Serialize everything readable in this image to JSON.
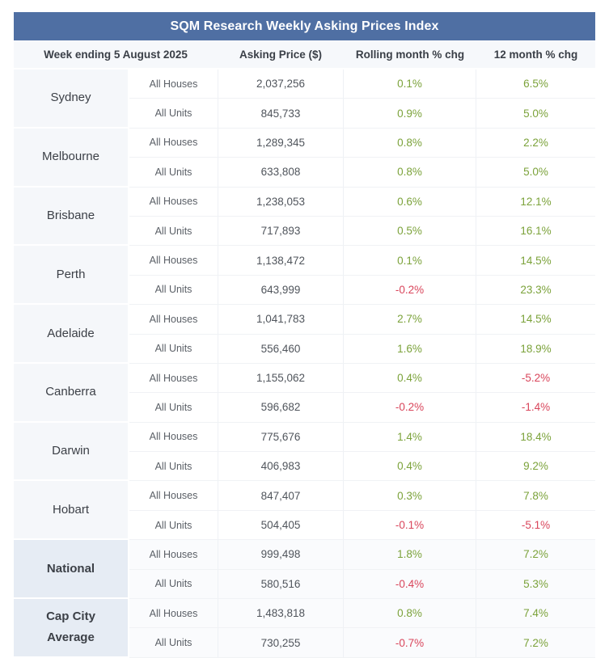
{
  "title": "SQM Research Weekly Asking Prices Index",
  "headers": {
    "week": "Week ending 5 August 2025",
    "price": "Asking Price ($)",
    "rolling": "Rolling month % chg",
    "annual": "12 month % chg"
  },
  "cities": [
    {
      "name": "Sydney",
      "aggregate": false,
      "rows": [
        {
          "type": "All Houses",
          "price": "2,037,256",
          "rolling": "0.1%",
          "annual": "6.5%"
        },
        {
          "type": "All Units",
          "price": "845,733",
          "rolling": "0.9%",
          "annual": "5.0%"
        }
      ]
    },
    {
      "name": "Melbourne",
      "aggregate": false,
      "rows": [
        {
          "type": "All Houses",
          "price": "1,289,345",
          "rolling": "0.8%",
          "annual": "2.2%"
        },
        {
          "type": "All Units",
          "price": "633,808",
          "rolling": "0.8%",
          "annual": "5.0%"
        }
      ]
    },
    {
      "name": "Brisbane",
      "aggregate": false,
      "rows": [
        {
          "type": "All Houses",
          "price": "1,238,053",
          "rolling": "0.6%",
          "annual": "12.1%"
        },
        {
          "type": "All Units",
          "price": "717,893",
          "rolling": "0.5%",
          "annual": "16.1%"
        }
      ]
    },
    {
      "name": "Perth",
      "aggregate": false,
      "rows": [
        {
          "type": "All Houses",
          "price": "1,138,472",
          "rolling": "0.1%",
          "annual": "14.5%"
        },
        {
          "type": "All Units",
          "price": "643,999",
          "rolling": "-0.2%",
          "annual": "23.3%"
        }
      ]
    },
    {
      "name": "Adelaide",
      "aggregate": false,
      "rows": [
        {
          "type": "All Houses",
          "price": "1,041,783",
          "rolling": "2.7%",
          "annual": "14.5%"
        },
        {
          "type": "All Units",
          "price": "556,460",
          "rolling": "1.6%",
          "annual": "18.9%"
        }
      ]
    },
    {
      "name": "Canberra",
      "aggregate": false,
      "rows": [
        {
          "type": "All Houses",
          "price": "1,155,062",
          "rolling": "0.4%",
          "annual": "-5.2%"
        },
        {
          "type": "All Units",
          "price": "596,682",
          "rolling": "-0.2%",
          "annual": "-1.4%"
        }
      ]
    },
    {
      "name": "Darwin",
      "aggregate": false,
      "rows": [
        {
          "type": "All Houses",
          "price": "775,676",
          "rolling": "1.4%",
          "annual": "18.4%"
        },
        {
          "type": "All Units",
          "price": "406,983",
          "rolling": "0.4%",
          "annual": "9.2%"
        }
      ]
    },
    {
      "name": "Hobart",
      "aggregate": false,
      "rows": [
        {
          "type": "All Houses",
          "price": "847,407",
          "rolling": "0.3%",
          "annual": "7.8%"
        },
        {
          "type": "All Units",
          "price": "504,405",
          "rolling": "-0.1%",
          "annual": "-5.1%"
        }
      ]
    },
    {
      "name": "National",
      "aggregate": true,
      "rows": [
        {
          "type": "All Houses",
          "price": "999,498",
          "rolling": "1.8%",
          "annual": "7.2%"
        },
        {
          "type": "All Units",
          "price": "580,516",
          "rolling": "-0.4%",
          "annual": "5.3%"
        }
      ]
    },
    {
      "name": "Cap City Average",
      "aggregate": true,
      "rows": [
        {
          "type": "All Houses",
          "price": "1,483,818",
          "rolling": "0.8%",
          "annual": "7.4%"
        },
        {
          "type": "All Units",
          "price": "730,255",
          "rolling": "-0.7%",
          "annual": "7.2%"
        }
      ]
    }
  ],
  "colors": {
    "title_bg": "#4f6fa3",
    "positive": "#7ba23a",
    "negative": "#d9455b"
  }
}
